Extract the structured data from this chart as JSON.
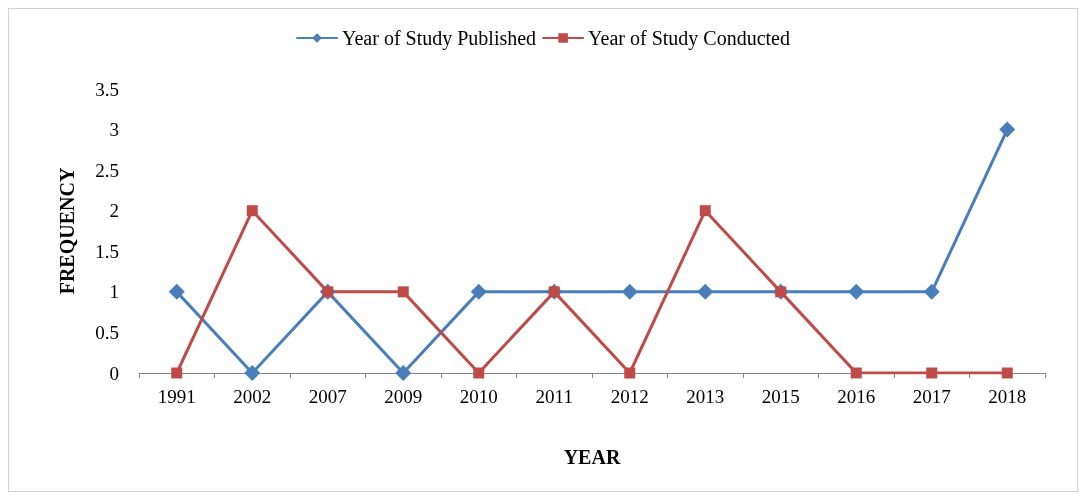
{
  "chart_data": {
    "type": "line",
    "xlabel": "YEAR",
    "ylabel": "FREQUENCY",
    "categories": [
      "1991",
      "2002",
      "2007",
      "2009",
      "2010",
      "2011",
      "2012",
      "2013",
      "2015",
      "2016",
      "2017",
      "2018"
    ],
    "series": [
      {
        "name": "Year of Study Published",
        "color": "#4a7ebb",
        "marker": "diamond",
        "values": [
          1,
          0,
          1,
          0,
          1,
          1,
          1,
          1,
          1,
          1,
          1,
          3
        ]
      },
      {
        "name": "Year of Study Conducted",
        "color": "#be4b48",
        "marker": "square",
        "values": [
          0,
          2,
          1,
          1,
          0,
          1,
          0,
          2,
          1,
          0,
          0,
          0
        ]
      }
    ],
    "ylim": [
      0,
      3.5
    ],
    "yticks": [
      0,
      0.5,
      1,
      1.5,
      2,
      2.5,
      3,
      3.5
    ],
    "grid": false,
    "legend": "top",
    "line_style": "solid"
  }
}
